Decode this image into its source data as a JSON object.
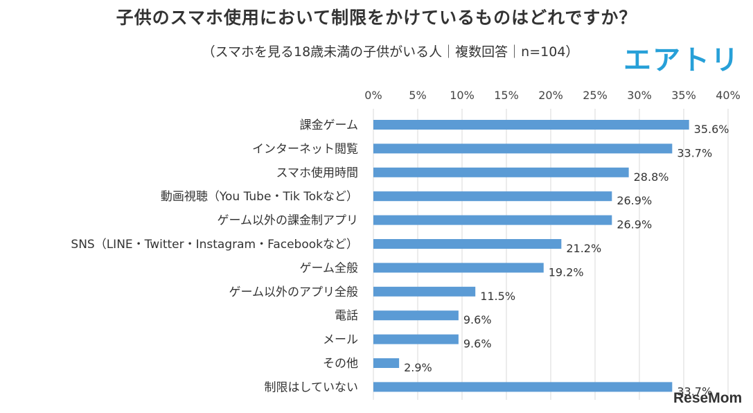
{
  "brand": "エアトリ",
  "watermark": "ReseMom",
  "chart_data": {
    "type": "bar",
    "orientation": "horizontal",
    "title": "子供のスマホ使用において制限をかけているものはどれですか？",
    "subtitle": "（スマホを見る18歳未満の子供がいる人｜複数回答｜n=104）",
    "categories": [
      "課金ゲーム",
      "インターネット閲覧",
      "スマホ使用時間",
      "動画視聴（You Tube・Tik Tokなど）",
      "ゲーム以外の課金制アプリ",
      "SNS（LINE・Twitter・Instagram・Facebookなど）",
      "ゲーム全般",
      "ゲーム以外のアプリ全般",
      "電話",
      "メール",
      "その他",
      "制限はしていない"
    ],
    "values": [
      35.6,
      33.7,
      28.8,
      26.9,
      26.9,
      21.2,
      19.2,
      11.5,
      9.6,
      9.6,
      2.9,
      33.7
    ],
    "data_labels": [
      "35.6%",
      "33.7%",
      "28.8%",
      "26.9%",
      "26.9%",
      "21.2%",
      "19.2%",
      "11.5%",
      "9.6%",
      "9.6%",
      "2.9%",
      "33.7%"
    ],
    "x_ticks": [
      "0%",
      "5%",
      "10%",
      "15%",
      "20%",
      "25%",
      "30%",
      "35%",
      "40%"
    ],
    "xlim": [
      0,
      40
    ],
    "axis_position": "top",
    "grid": true,
    "bar_color": "#5b9bd5",
    "grid_color": "#d9d9d9"
  }
}
